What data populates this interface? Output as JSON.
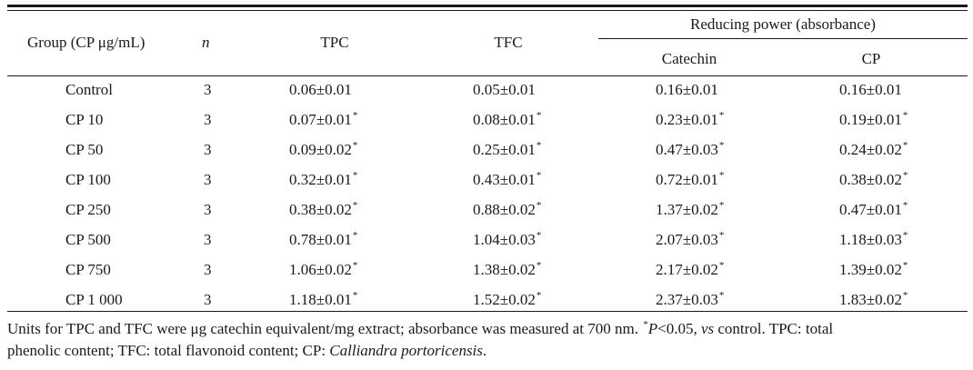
{
  "table": {
    "headers": {
      "group": "Group (CP μg/mL)",
      "n": "n",
      "tpc": "TPC",
      "tfc": "TFC",
      "reducing_power": "Reducing power (absorbance)",
      "catechin": "Catechin",
      "cp": "CP"
    },
    "rows": [
      {
        "group": "Control",
        "n": "3",
        "tpc": "0.06±0.01",
        "tpc_star": "",
        "tfc": "0.05±0.01",
        "tfc_star": "",
        "catechin": "0.16±0.01",
        "catechin_star": "",
        "cp": "0.16±0.01",
        "cp_star": ""
      },
      {
        "group": "CP 10",
        "n": "3",
        "tpc": "0.07±0.01",
        "tpc_star": "*",
        "tfc": "0.08±0.01",
        "tfc_star": "*",
        "catechin": "0.23±0.01",
        "catechin_star": "*",
        "cp": "0.19±0.01",
        "cp_star": "*"
      },
      {
        "group": "CP 50",
        "n": "3",
        "tpc": "0.09±0.02",
        "tpc_star": "*",
        "tfc": "0.25±0.01",
        "tfc_star": "*",
        "catechin": "0.47±0.03",
        "catechin_star": "*",
        "cp": "0.24±0.02",
        "cp_star": "*"
      },
      {
        "group": "CP 100",
        "n": "3",
        "tpc": "0.32±0.01",
        "tpc_star": "*",
        "tfc": "0.43±0.01",
        "tfc_star": "*",
        "catechin": "0.72±0.01",
        "catechin_star": "*",
        "cp": "0.38±0.02",
        "cp_star": "*"
      },
      {
        "group": "CP 250",
        "n": "3",
        "tpc": "0.38±0.02",
        "tpc_star": "*",
        "tfc": "0.88±0.02",
        "tfc_star": "*",
        "catechin": "1.37±0.02",
        "catechin_star": "*",
        "cp": "0.47±0.01",
        "cp_star": "*"
      },
      {
        "group": "CP 500",
        "n": "3",
        "tpc": "0.78±0.01",
        "tpc_star": "*",
        "tfc": "1.04±0.03",
        "tfc_star": "*",
        "catechin": "2.07±0.03",
        "catechin_star": "*",
        "cp": "1.18±0.03",
        "cp_star": "*"
      },
      {
        "group": "CP 750",
        "n": "3",
        "tpc": "1.06±0.02",
        "tpc_star": "*",
        "tfc": "1.38±0.02",
        "tfc_star": "*",
        "catechin": "2.17±0.02",
        "catechin_star": "*",
        "cp": "1.39±0.02",
        "cp_star": "*"
      },
      {
        "group": "CP 1 000",
        "n": "3",
        "tpc": "1.18±0.01",
        "tpc_star": "*",
        "tfc": "1.52±0.02",
        "tfc_star": "*",
        "catechin": "2.37±0.03",
        "catechin_star": "*",
        "cp": "1.83±0.02",
        "cp_star": "*"
      }
    ]
  },
  "footnote": {
    "part1": "Units for TPC and TFC were μg catechin equivalent/mg extract; absorbance was measured at 700 nm. ",
    "star": "*",
    "p": "P",
    "part2": "<0.05, ",
    "vs": "vs",
    "part3": " control. TPC: total",
    "line2": "phenolic content; TFC: total flavonoid content; CP: ",
    "species": "Calliandra portoricensis",
    "end": "."
  }
}
